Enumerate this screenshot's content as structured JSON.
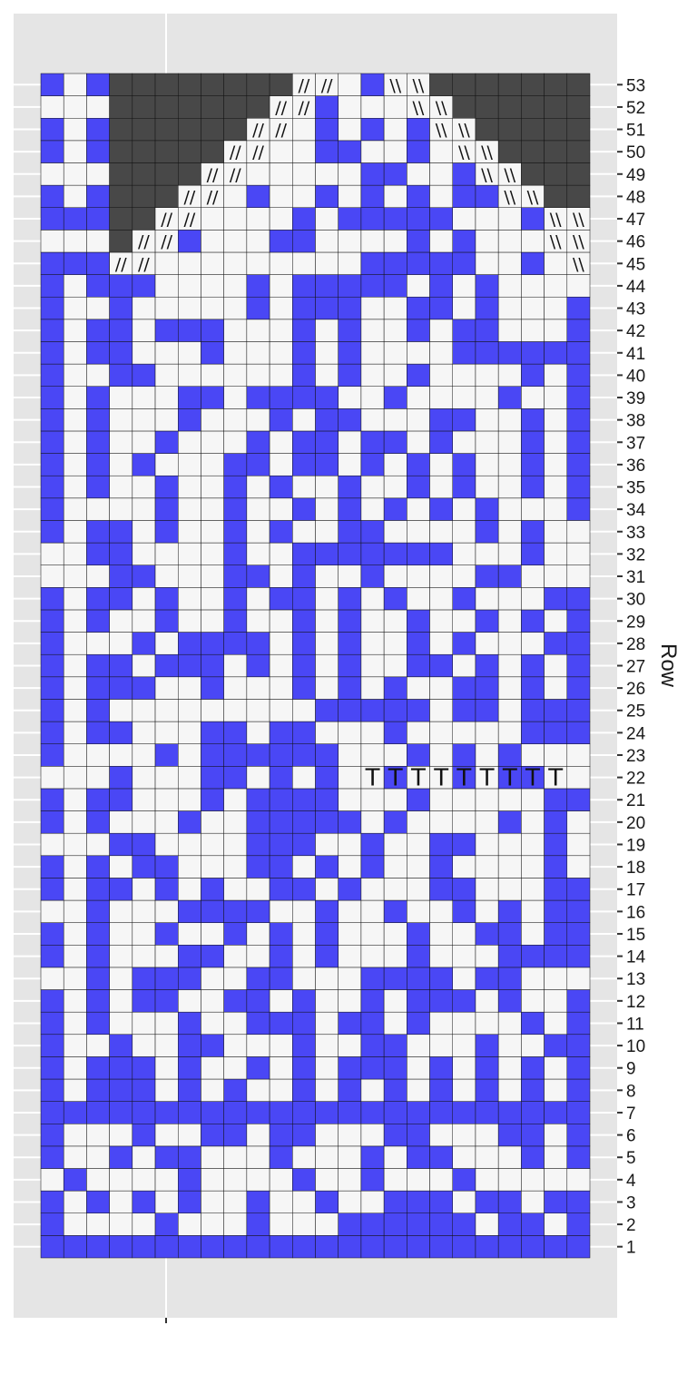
{
  "chart_data": {
    "type": "heatmap",
    "title": "",
    "xlabel": "",
    "ylabel": "Row",
    "ylabel_position": "right",
    "y_ticks": [
      1,
      2,
      3,
      4,
      5,
      6,
      7,
      8,
      9,
      10,
      11,
      12,
      13,
      14,
      15,
      16,
      17,
      18,
      19,
      20,
      21,
      22,
      23,
      24,
      25,
      26,
      27,
      28,
      29,
      30,
      31,
      32,
      33,
      34,
      35,
      36,
      37,
      38,
      39,
      40,
      41,
      42,
      43,
      44,
      45,
      46,
      47,
      48,
      49,
      50,
      51,
      52,
      53
    ],
    "columns": 24,
    "grid": true,
    "legend": "none",
    "colors": {
      "panel_background": "#e5e5e5",
      "panel_gridline": "#ffffff",
      "color_stitch": "#4a47f5",
      "background_stitch": "#f6f6f6",
      "no_stitch": "#484848",
      "cell_border": "#111111"
    },
    "cell_codes": {
      "B": "color_stitch",
      "W": "background_stitch",
      "D": "no_stitch"
    },
    "grid_rows": [
      "BBBBBBBBBBBBBBBBBBBBBBBB",
      "BWWWWBWWWBWWWBBBBBBWBBWB",
      "BWBWBWBWWBWWBWWBBBWBBWBB",
      "WBWWWWBWWWWBWWBWWWBWWWWW",
      "BWWBWBBWWWBWWWBWBBWWWBWB",
      "BWWWBWWBBWBBWWWBBWWWBBWB",
      "BBBBBBBBBBBBBBBBBBBBBBBB",
      "BWBBBWBWBWWBWBWBWBWBWBWB",
      "BWBBBWBWWBWBWBBBWBWBWBWB",
      "BWWBWWBBWWWBWWBBWWWBWWBB",
      "BWBWWWBWWBBBWBBWBWWWWBWB",
      "BWBWBBWWBBWBWWBWBBBWBWWB",
      "WWBWBBBWWBBWWWBBBBWBBWWW",
      "BWBWWWBBWWBWBWWWBWWWBBBB",
      "BWBWWBWWBWBWBWWWBWWBBWBB",
      "WWBWWWBBBBWWBWWBWWBWBWBB",
      "BWBBWBWBWWBBWBWWWBBWWWBB",
      "BWBWBBWWWBBWBWBWWBWWWWBW",
      "WWWBBWWWWBBBWWBWWBBWWWBW",
      "BWBWWWBWWBBBBBWBWWWWBWBW",
      "BWBBWWWBWBBBBWWWBWWWWWBB",
      "WWWBWWWBBWBWBWWBWWBWBBWW",
      "BWWWWBWBBBBBBWWWBWBWBWWW",
      "BWBBWWWBBWBBWWWBWWWWWBBB",
      "BWBWWWWWWWWWBBBBBWBBWBBB",
      "BWBBBWWBWWWBWBWBWWBBWBWB",
      "BWBBWBBBWBWBWBWWBBWBWBWB",
      "BWWWBWBBBBWBWBWWBWBWWWBB",
      "BWBWWBWWBWWBWBWWBWWBWBWB",
      "BWBBWBWWBWBBWBWBWWBWWWBB",
      "WWWBBWWWBBWBWWBWWWWBBWWW",
      "WWBBWWWWBWWBBBBBBBWWWBWW",
      "BWBBWBWWBWBWWBBWWWWBWBWW",
      "BWWWWBWWBWWBWBWBWBWBWWWB",
      "BWBWWBWWBWBWWBWWBWBWWBWB",
      "BWBWBWWWBBWBBWBWBWBWWBWB",
      "BWBWWBWWWBWBBWBBWBWWWBWB",
      "BWBWWWBWWWBWBBWWWBBWWBWB",
      "BWBWWWBBWBBBBWWBWWWWBWWB",
      "BWWBBWWWWWWBWBWWBWWWWBWB",
      "BWBBWWWBWWWBWBWWWWBBBBBB",
      "BWBBWBBBWWWBWBWWBWBBWWWB",
      "BWWBWWWWWBWBBBWWBBWBWWWB",
      "BWBBBWWWWBWBBBBBWBWBWWWW",
      "BBBSSWWWWWWWWWBBBBBWWBWC",
      "WWWDSSBWWWBBWWWWBWBWWWCC",
      "BBBDDSSWWWWBWBBBBBWWWBCC",
      "BWBDDDSSWBWWBWBWBWBBCCDD",
      "WWWDDDDSSWWWWWBBWWBCCDDD",
      "BWBDDDDDSSWWBBWWBWCCDDDD",
      "BWBDDDDDDSSWBWBWBCCDDDDD",
      "WWWDDDDDDDSSBWWWCCDDDDDD",
      "BWBDDDDDDDDSSWBCCDDDDDDD"
    ],
    "symbols": {
      "S": "//",
      "C": "\\\\"
    },
    "annotations": [
      {
        "row": 22,
        "col": 15,
        "text": "T"
      },
      {
        "row": 22,
        "col": 16,
        "text": "T"
      },
      {
        "row": 22,
        "col": 17,
        "text": "T"
      },
      {
        "row": 22,
        "col": 18,
        "text": "T"
      },
      {
        "row": 22,
        "col": 19,
        "text": "T"
      },
      {
        "row": 22,
        "col": 20,
        "text": "T"
      },
      {
        "row": 22,
        "col": 21,
        "text": "T"
      },
      {
        "row": 22,
        "col": 22,
        "text": "T"
      },
      {
        "row": 22,
        "col": 23,
        "text": "T"
      }
    ]
  }
}
